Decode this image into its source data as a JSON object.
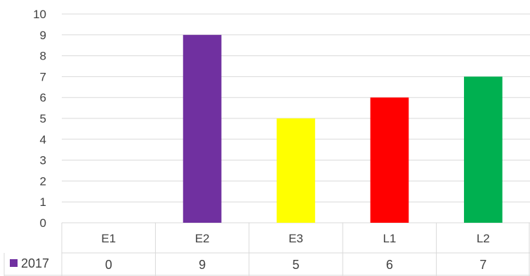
{
  "chart_data": {
    "type": "bar",
    "categories": [
      "E1",
      "E2",
      "E3",
      "L1",
      "L2"
    ],
    "series": [
      {
        "name": "2017",
        "values": [
          0,
          9,
          5,
          6,
          7
        ]
      }
    ],
    "bar_colors": [
      "#7030A0",
      "#7030A0",
      "#FFFF00",
      "#FF0000",
      "#00B050"
    ],
    "legend_color": "#7030A0",
    "ylim": [
      0,
      10
    ],
    "yticks": [
      "0",
      "1",
      "2",
      "3",
      "4",
      "5",
      "6",
      "7",
      "8",
      "9",
      "10"
    ],
    "grid": true,
    "data_table": true,
    "table_values": [
      "0",
      "9",
      "5",
      "6",
      "7"
    ]
  }
}
